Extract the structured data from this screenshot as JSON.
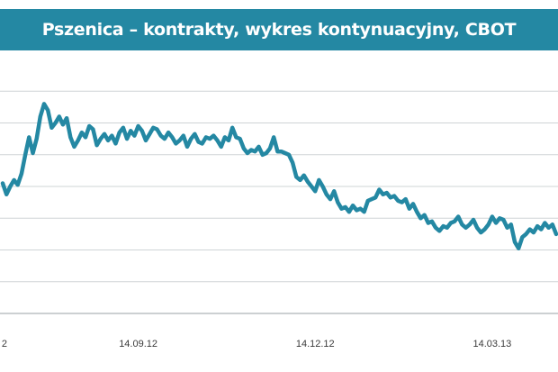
{
  "chart_data": {
    "type": "line",
    "title": "Pszenica – kontrakty, wykres kontynuacyjny, CBOT",
    "xlabel": "",
    "ylabel": "",
    "grid": true,
    "legend": "none",
    "line_color": "#2488a3",
    "x_ticks": [
      {
        "label": "2",
        "index": 0
      },
      {
        "label": "14.09.12",
        "index": 36
      },
      {
        "label": "14.12.12",
        "index": 83
      },
      {
        "label": "14.03.13",
        "index": 130
      }
    ],
    "ylim": [
      0,
      8
    ],
    "y_gridlines": [
      1,
      2,
      3,
      4,
      5,
      6,
      7
    ],
    "series": [
      {
        "name": "",
        "values": [
          4.1,
          3.75,
          4.0,
          4.2,
          4.05,
          4.4,
          5.0,
          5.55,
          5.05,
          5.5,
          6.2,
          6.6,
          6.4,
          5.85,
          6.0,
          6.2,
          5.95,
          6.15,
          5.55,
          5.25,
          5.45,
          5.7,
          5.55,
          5.9,
          5.8,
          5.3,
          5.5,
          5.65,
          5.45,
          5.6,
          5.35,
          5.7,
          5.85,
          5.5,
          5.75,
          5.6,
          5.9,
          5.75,
          5.45,
          5.65,
          5.85,
          5.8,
          5.6,
          5.5,
          5.7,
          5.55,
          5.35,
          5.45,
          5.6,
          5.25,
          5.5,
          5.65,
          5.4,
          5.35,
          5.55,
          5.5,
          5.6,
          5.45,
          5.25,
          5.55,
          5.45,
          5.85,
          5.55,
          5.5,
          5.2,
          5.05,
          5.15,
          5.1,
          5.25,
          5.0,
          5.05,
          5.2,
          5.55,
          5.1,
          5.1,
          5.05,
          5.0,
          4.75,
          4.3,
          4.2,
          4.35,
          4.15,
          4.0,
          3.85,
          4.2,
          4.0,
          3.75,
          3.6,
          3.85,
          3.5,
          3.3,
          3.35,
          3.2,
          3.4,
          3.25,
          3.3,
          3.2,
          3.55,
          3.6,
          3.65,
          3.9,
          3.75,
          3.8,
          3.65,
          3.7,
          3.55,
          3.5,
          3.6,
          3.3,
          3.45,
          3.2,
          3.0,
          3.1,
          2.85,
          2.9,
          2.7,
          2.6,
          2.75,
          2.7,
          2.85,
          2.9,
          3.05,
          2.8,
          2.7,
          2.8,
          2.95,
          2.7,
          2.55,
          2.65,
          2.8,
          3.05,
          2.85,
          3.0,
          2.95,
          2.7,
          2.8,
          2.25,
          2.05,
          2.4,
          2.5,
          2.65,
          2.55,
          2.75,
          2.65,
          2.85,
          2.7,
          2.8,
          2.5
        ]
      }
    ]
  }
}
